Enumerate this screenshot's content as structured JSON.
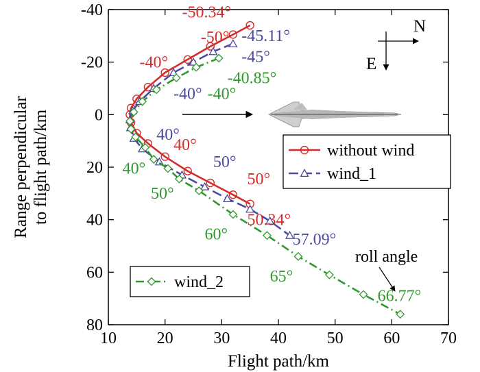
{
  "chart_data": {
    "type": "line",
    "xlabel": "Flight path/km",
    "ylabel_lines": [
      "Range perpendicular",
      "to flight path/km"
    ],
    "xlim": [
      10,
      70
    ],
    "ylim": [
      -40,
      80
    ],
    "y_inverted": true,
    "x_ticks": [
      "10",
      "20",
      "30",
      "40",
      "50",
      "60",
      "70"
    ],
    "y_ticks": [
      "-40",
      "-20",
      "0",
      "20",
      "40",
      "60",
      "80"
    ],
    "grid": false,
    "series": [
      {
        "name": "without wind",
        "color": "#d42d2d",
        "dash": "solid",
        "marker": "circle",
        "x": [
          35,
          32,
          28,
          24,
          20,
          17,
          15,
          14,
          13.8,
          14,
          15,
          17,
          20,
          24,
          28,
          32,
          35
        ],
        "y": [
          -34,
          -30.5,
          -26,
          -21,
          -16,
          -10.5,
          -6,
          -2.5,
          0,
          3,
          7,
          11,
          16,
          21.5,
          26,
          30.5,
          34
        ]
      },
      {
        "name": "wind_1",
        "color": "#4a4aa0",
        "dash": "long-dash",
        "marker": "triangle",
        "x": [
          32,
          28.5,
          25,
          21.5,
          18,
          15.5,
          14.3,
          13.8,
          13.9,
          14.5,
          16,
          19,
          23,
          27,
          31,
          35,
          38.5,
          42
        ],
        "y": [
          -27,
          -24,
          -20,
          -16,
          -10,
          -5,
          -1.5,
          2,
          5,
          9,
          13,
          18,
          23,
          27.5,
          32,
          36,
          40.5,
          46
        ]
      },
      {
        "name": "wind_2",
        "color": "#2e9a2e",
        "dash": "dash-dot",
        "marker": "diamond",
        "x": [
          29.5,
          25.5,
          22,
          18.5,
          16,
          14.5,
          13.8,
          14,
          14.8,
          16.5,
          18,
          20.5,
          22.5,
          26,
          32,
          38,
          43.5,
          49,
          55,
          61.5
        ],
        "y": [
          -21.5,
          -18,
          -14,
          -9.5,
          -5,
          -1,
          2.5,
          5.5,
          8.5,
          12.5,
          17,
          20.5,
          24.5,
          29,
          38,
          46,
          54,
          61,
          68.5,
          76
        ]
      }
    ],
    "angle_labels": [
      {
        "text": "-50.34°",
        "color": "#d42d2d",
        "x": 23,
        "y": -37
      },
      {
        "text": "-50°",
        "color": "#d42d2d",
        "x": 26.3,
        "y": -27.5
      },
      {
        "text": "-40°",
        "color": "#d42d2d",
        "x": 15.5,
        "y": -18
      },
      {
        "text": "-45.11°",
        "color": "#4a4aa0",
        "x": 33.5,
        "y": -28
      },
      {
        "text": "-45°",
        "color": "#4a4aa0",
        "x": 33.5,
        "y": -20
      },
      {
        "text": "-40.85°",
        "color": "#2e9a2e",
        "x": 31,
        "y": -12
      },
      {
        "text": "-40°",
        "color": "#4a4aa0",
        "x": 21.5,
        "y": -6
      },
      {
        "text": "-40°",
        "color": "#2e9a2e",
        "x": 27.5,
        "y": -6
      },
      {
        "text": "40°",
        "color": "#4a4aa0",
        "x": 18.5,
        "y": 9.5
      },
      {
        "text": "40°",
        "color": "#d42d2d",
        "x": 21.5,
        "y": 13.5
      },
      {
        "text": "50°",
        "color": "#4a4aa0",
        "x": 28.5,
        "y": 20
      },
      {
        "text": "40°",
        "color": "#2e9a2e",
        "x": 12.5,
        "y": 22.5
      },
      {
        "text": "50°",
        "color": "#d42d2d",
        "x": 34.5,
        "y": 26.5
      },
      {
        "text": "50°",
        "color": "#2e9a2e",
        "x": 17.5,
        "y": 32
      },
      {
        "text": "50.34°",
        "color": "#d42d2d",
        "x": 34.5,
        "y": 42
      },
      {
        "text": "57.09°",
        "color": "#4a4aa0",
        "x": 42.5,
        "y": 49.5
      },
      {
        "text": "60°",
        "color": "#2e9a2e",
        "x": 27,
        "y": 47.5
      },
      {
        "text": "65°",
        "color": "#2e9a2e",
        "x": 38.5,
        "y": 63.5
      },
      {
        "text": "66.77°",
        "color": "#2e9a2e",
        "x": 57.5,
        "y": 71
      }
    ],
    "roll_angle_note": "roll angle",
    "compass": {
      "north": "N",
      "east": "E"
    },
    "legend_position": "right-center (wind_2 entry at lower-left)"
  }
}
